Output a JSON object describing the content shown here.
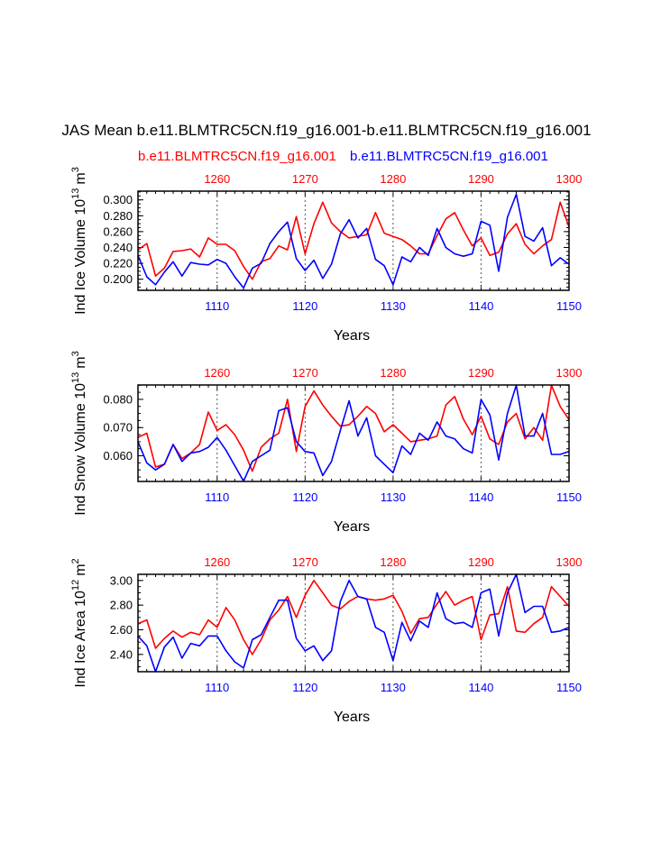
{
  "title": "JAS Mean b.e11.BLMTRC5CN.f19_g16.001-b.e11.BLMTRC5CN.f19_g16.001",
  "legend": {
    "red_label": "b.e11.BLMTRC5CN.f19_g16.001",
    "blue_label": "b.e11.BLMTRC5CN.f19_g16.001"
  },
  "colors": {
    "red": "#ff0000",
    "blue": "#0000ff",
    "frame": "#000000"
  },
  "chart_data": [
    {
      "type": "line",
      "ylabel": "Ind Ice Volume 10^13 m^3",
      "ylabel_main": "Ind Ice Volume 10",
      "ylabel_exp": "13",
      "ylabel_unit": "m",
      "ylabel_unit_exp": "3",
      "xlabel": "Years",
      "x_bottom_ticks": [
        "1110",
        "1120",
        "1130",
        "1140",
        "1150"
      ],
      "x_top_ticks": [
        "1260",
        "1270",
        "1280",
        "1290",
        "1300"
      ],
      "y_ticks": [
        "0.200",
        "0.220",
        "0.240",
        "0.260",
        "0.280",
        "0.300"
      ],
      "ylim": [
        0.186,
        0.311
      ],
      "xlim": [
        1101,
        1150
      ],
      "x": [
        1101,
        1102,
        1103,
        1104,
        1105,
        1106,
        1107,
        1108,
        1109,
        1110,
        1111,
        1112,
        1113,
        1114,
        1115,
        1116,
        1117,
        1118,
        1119,
        1120,
        1121,
        1122,
        1123,
        1124,
        1125,
        1126,
        1127,
        1128,
        1129,
        1130,
        1131,
        1132,
        1133,
        1134,
        1135,
        1136,
        1137,
        1138,
        1139,
        1140,
        1141,
        1142,
        1143,
        1144,
        1145,
        1146,
        1147,
        1148,
        1149,
        1150
      ],
      "series": [
        {
          "color": "red",
          "values": [
            0.237,
            0.245,
            0.204,
            0.214,
            0.235,
            0.236,
            0.238,
            0.228,
            0.252,
            0.244,
            0.244,
            0.236,
            0.216,
            0.2,
            0.222,
            0.226,
            0.242,
            0.237,
            0.279,
            0.232,
            0.27,
            0.297,
            0.271,
            0.26,
            0.252,
            0.254,
            0.256,
            0.284,
            0.258,
            0.254,
            0.25,
            0.242,
            0.232,
            0.232,
            0.255,
            0.276,
            0.284,
            0.262,
            0.242,
            0.252,
            0.23,
            0.234,
            0.257,
            0.27,
            0.244,
            0.232,
            0.242,
            0.25,
            0.297,
            0.266
          ]
        },
        {
          "color": "blue",
          "values": [
            0.23,
            0.203,
            0.193,
            0.209,
            0.222,
            0.204,
            0.221,
            0.219,
            0.218,
            0.225,
            0.22,
            0.203,
            0.189,
            0.214,
            0.22,
            0.245,
            0.26,
            0.272,
            0.226,
            0.211,
            0.224,
            0.201,
            0.219,
            0.257,
            0.275,
            0.252,
            0.264,
            0.225,
            0.217,
            0.193,
            0.228,
            0.222,
            0.24,
            0.23,
            0.264,
            0.24,
            0.232,
            0.229,
            0.232,
            0.273,
            0.268,
            0.21,
            0.278,
            0.307,
            0.254,
            0.248,
            0.265,
            0.217,
            0.227,
            0.219
          ]
        }
      ]
    },
    {
      "type": "line",
      "ylabel": "Ind Snow Volume 10^13 m^3",
      "ylabel_main": "Ind Snow Volume 10",
      "ylabel_exp": "13",
      "ylabel_unit": "m",
      "ylabel_unit_exp": "3",
      "xlabel": "Years",
      "x_bottom_ticks": [
        "1110",
        "1120",
        "1130",
        "1140",
        "1150"
      ],
      "x_top_ticks": [
        "1260",
        "1270",
        "1280",
        "1290",
        "1300"
      ],
      "y_ticks": [
        "0.060",
        "0.070",
        "0.080"
      ],
      "ylim": [
        0.0509,
        0.0851
      ],
      "xlim": [
        1101,
        1150
      ],
      "x": [
        1101,
        1102,
        1103,
        1104,
        1105,
        1106,
        1107,
        1108,
        1109,
        1110,
        1111,
        1112,
        1113,
        1114,
        1115,
        1116,
        1117,
        1118,
        1119,
        1120,
        1121,
        1122,
        1123,
        1124,
        1125,
        1126,
        1127,
        1128,
        1129,
        1130,
        1131,
        1132,
        1133,
        1134,
        1135,
        1136,
        1137,
        1138,
        1139,
        1140,
        1141,
        1142,
        1143,
        1144,
        1145,
        1146,
        1147,
        1148,
        1149,
        1150
      ],
      "series": [
        {
          "color": "red",
          "values": [
            0.0665,
            0.068,
            0.056,
            0.057,
            0.064,
            0.059,
            0.061,
            0.064,
            0.0755,
            0.069,
            0.071,
            0.0675,
            0.062,
            0.0545,
            0.063,
            0.066,
            0.068,
            0.08,
            0.0615,
            0.0775,
            0.083,
            0.078,
            0.074,
            0.0705,
            0.071,
            0.074,
            0.0775,
            0.075,
            0.0685,
            0.071,
            0.068,
            0.065,
            0.0655,
            0.066,
            0.067,
            0.078,
            0.081,
            0.073,
            0.0675,
            0.074,
            0.066,
            0.064,
            0.072,
            0.075,
            0.066,
            0.07,
            0.0655,
            0.085,
            0.0775,
            0.0728
          ]
        },
        {
          "color": "blue",
          "values": [
            0.065,
            0.0575,
            0.055,
            0.057,
            0.064,
            0.058,
            0.061,
            0.0615,
            0.063,
            0.0665,
            0.062,
            0.0565,
            0.051,
            0.058,
            0.06,
            0.062,
            0.076,
            0.077,
            0.065,
            0.0615,
            0.061,
            0.053,
            0.058,
            0.069,
            0.0795,
            0.067,
            0.0735,
            0.06,
            0.057,
            0.054,
            0.0635,
            0.0605,
            0.068,
            0.0655,
            0.072,
            0.067,
            0.066,
            0.0625,
            0.061,
            0.08,
            0.0745,
            0.0585,
            0.075,
            0.085,
            0.067,
            0.067,
            0.075,
            0.0605,
            0.0605,
            0.0615
          ]
        }
      ]
    },
    {
      "type": "line",
      "ylabel": "Ind Ice Area 10^12 m^2",
      "ylabel_main": "Ind Ice Area 10",
      "ylabel_exp": "12",
      "ylabel_unit": "m",
      "ylabel_unit_exp": "2",
      "xlabel": "Years",
      "x_bottom_ticks": [
        "1110",
        "1120",
        "1130",
        "1140",
        "1150"
      ],
      "x_top_ticks": [
        "1260",
        "1270",
        "1280",
        "1290",
        "1300"
      ],
      "y_ticks": [
        "2.40",
        "2.60",
        "2.80",
        "3.00"
      ],
      "ylim": [
        2.26,
        3.05
      ],
      "xlim": [
        1101,
        1150
      ],
      "x": [
        1101,
        1102,
        1103,
        1104,
        1105,
        1106,
        1107,
        1108,
        1109,
        1110,
        1111,
        1112,
        1113,
        1114,
        1115,
        1116,
        1117,
        1118,
        1119,
        1120,
        1121,
        1122,
        1123,
        1124,
        1125,
        1126,
        1127,
        1128,
        1129,
        1130,
        1131,
        1132,
        1133,
        1134,
        1135,
        1136,
        1137,
        1138,
        1139,
        1140,
        1141,
        1142,
        1143,
        1144,
        1145,
        1146,
        1147,
        1148,
        1149,
        1150
      ],
      "series": [
        {
          "color": "red",
          "values": [
            2.65,
            2.68,
            2.45,
            2.53,
            2.59,
            2.54,
            2.58,
            2.56,
            2.68,
            2.62,
            2.78,
            2.68,
            2.52,
            2.4,
            2.52,
            2.68,
            2.76,
            2.87,
            2.7,
            2.88,
            3.0,
            2.9,
            2.8,
            2.77,
            2.83,
            2.87,
            2.85,
            2.84,
            2.85,
            2.88,
            2.75,
            2.57,
            2.69,
            2.7,
            2.81,
            2.91,
            2.8,
            2.84,
            2.87,
            2.52,
            2.72,
            2.73,
            2.95,
            2.59,
            2.58,
            2.65,
            2.7,
            2.95,
            2.87,
            2.79
          ]
        },
        {
          "color": "blue",
          "values": [
            2.55,
            2.47,
            2.26,
            2.46,
            2.54,
            2.37,
            2.49,
            2.47,
            2.55,
            2.55,
            2.43,
            2.34,
            2.29,
            2.52,
            2.56,
            2.7,
            2.84,
            2.84,
            2.53,
            2.43,
            2.47,
            2.35,
            2.43,
            2.83,
            3.0,
            2.87,
            2.85,
            2.62,
            2.58,
            2.35,
            2.66,
            2.51,
            2.67,
            2.62,
            2.9,
            2.69,
            2.65,
            2.66,
            2.62,
            2.9,
            2.93,
            2.55,
            2.9,
            3.05,
            2.74,
            2.79,
            2.79,
            2.58,
            2.59,
            2.62
          ]
        }
      ]
    }
  ]
}
